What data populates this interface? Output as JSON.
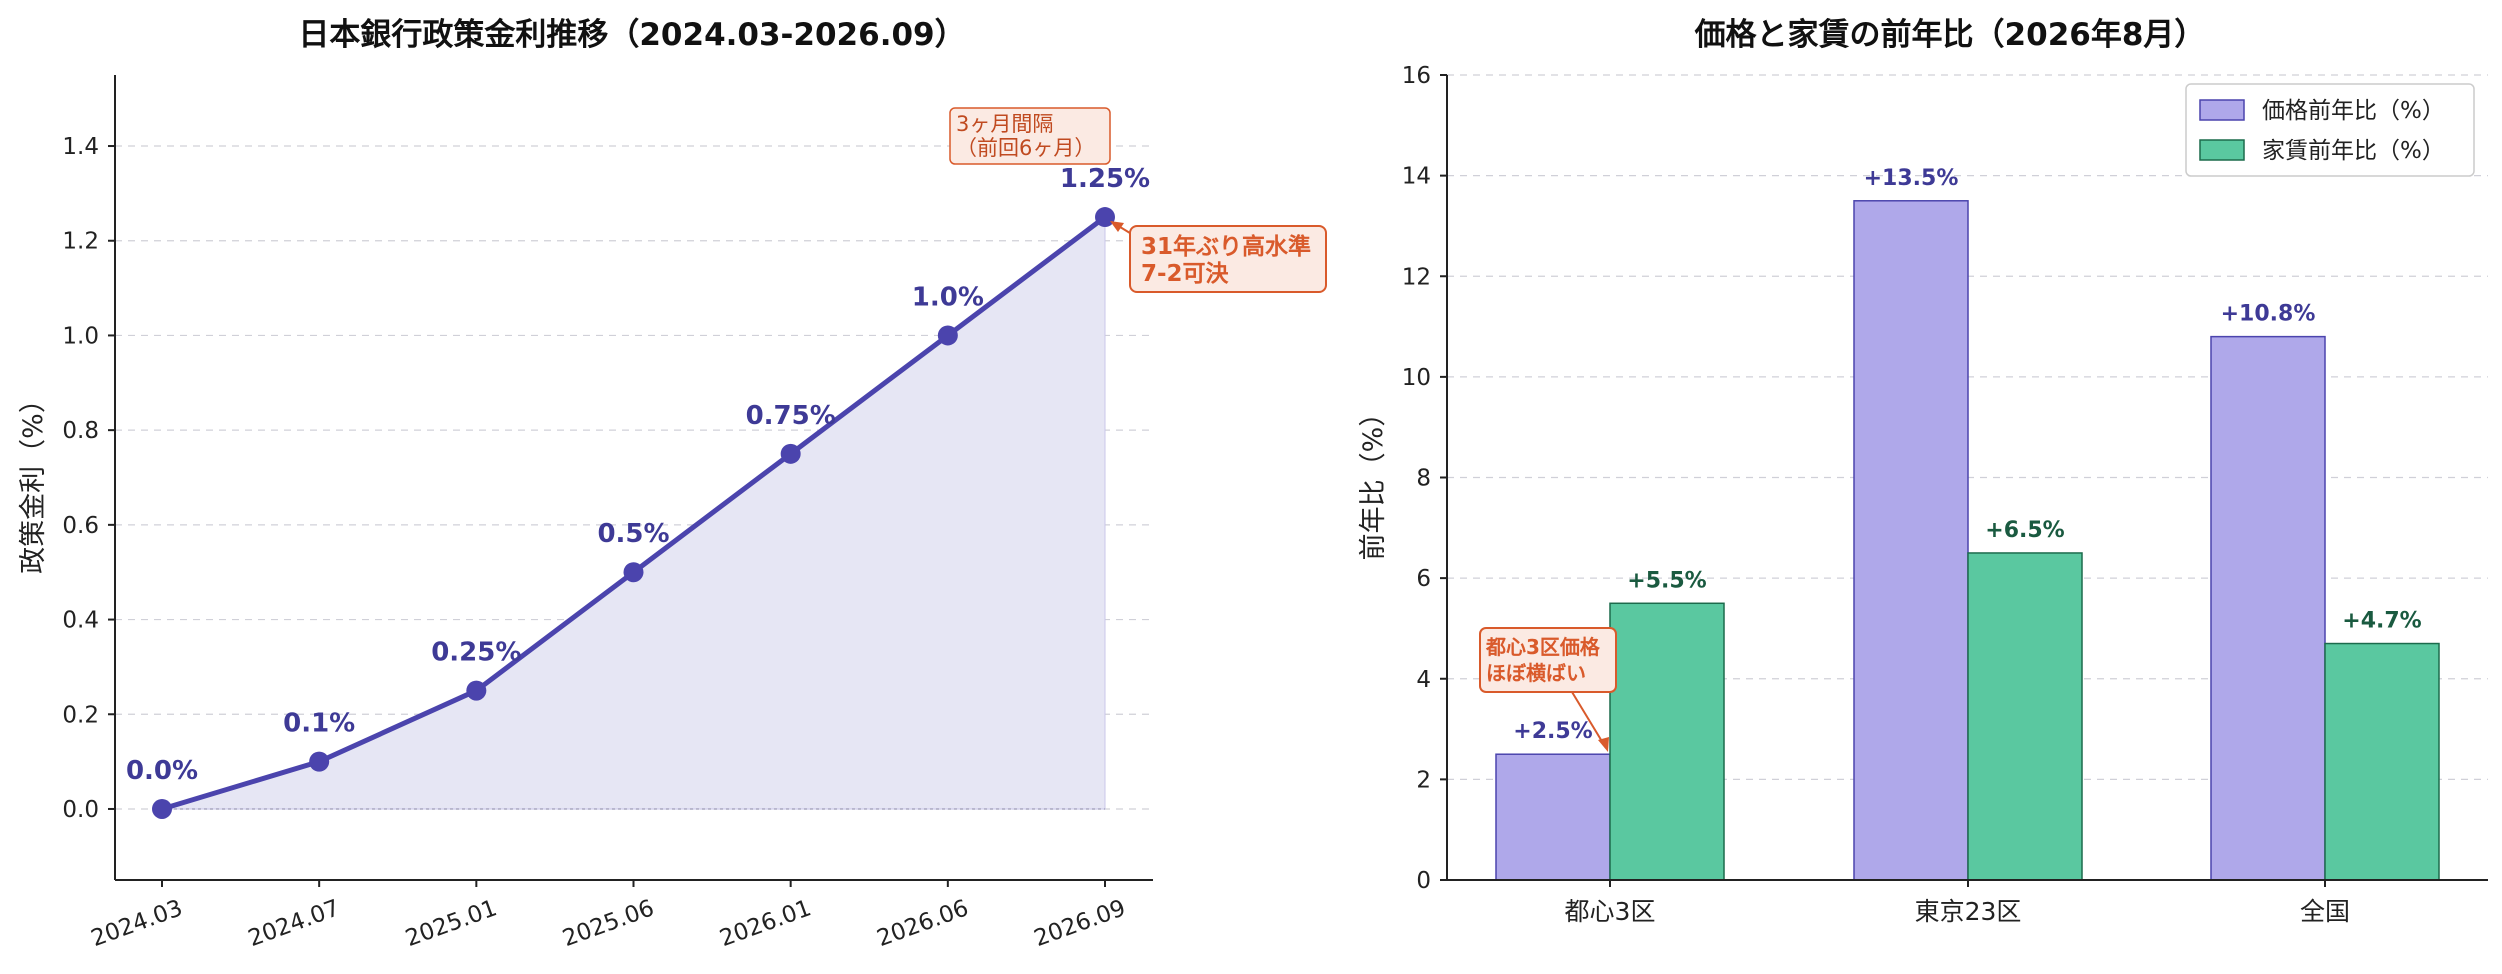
{
  "colors": {
    "rate_line": "#4b44ad",
    "rate_fill": "#e6e6f4",
    "rate_label": "#3e3a96",
    "price_bar": "#afa8ea",
    "price_edge": "#4b44ad",
    "rent_bar": "#5ac8a0",
    "rent_edge": "#1c6b4c",
    "price_label": "#3e3a96",
    "rent_label": "#1a5a40",
    "annotation": "#d95a2b",
    "annotation_fill": "#fbeae3"
  },
  "chart_data": [
    {
      "type": "line",
      "title": "日本銀行政策金利推移（2024.03-2026.09）",
      "xlabel": "",
      "ylabel": "政策金利（%）",
      "categories": [
        "2024.03",
        "2024.07",
        "2025.01",
        "2025.06",
        "2026.01",
        "2026.06",
        "2026.09"
      ],
      "values": [
        0.0,
        0.1,
        0.25,
        0.5,
        0.75,
        1.0,
        1.25
      ],
      "point_labels": [
        "0.0%",
        "0.1%",
        "0.25%",
        "0.5%",
        "0.75%",
        "1.0%",
        "1.25%"
      ],
      "ylim": [
        -0.15,
        1.55
      ],
      "yticks": [
        "0.0",
        "0.2",
        "0.4",
        "0.6",
        "0.8",
        "1.0",
        "1.2",
        "1.4"
      ],
      "grid": true,
      "filled_area": true,
      "annotations": {
        "interval_note": [
          "3ヶ月間隔",
          "（前回6ヶ月）"
        ],
        "record_note": [
          "31年ぶり高水準",
          "7-2可決"
        ]
      }
    },
    {
      "type": "bar",
      "title": "価格と家賃の前年比（2026年8月）",
      "xlabel": "",
      "ylabel": "前年比（%）",
      "categories": [
        "都心3区",
        "東京23区",
        "全国"
      ],
      "series": [
        {
          "name": "価格前年比（%）",
          "values": [
            2.5,
            13.5,
            10.8
          ],
          "labels": [
            "+2.5%",
            "+13.5%",
            "+10.8%"
          ]
        },
        {
          "name": "家賃前年比（%）",
          "values": [
            5.5,
            6.5,
            4.7
          ],
          "labels": [
            "+5.5%",
            "+6.5%",
            "+4.7%"
          ]
        }
      ],
      "ylim": [
        0,
        16
      ],
      "yticks": [
        "0",
        "2",
        "4",
        "6",
        "8",
        "10",
        "12",
        "14",
        "16"
      ],
      "grid": true,
      "legend_position": "top-right",
      "annotations": {
        "flat_note": [
          "都心3区価格",
          "ほぼ横ばい"
        ]
      }
    }
  ]
}
